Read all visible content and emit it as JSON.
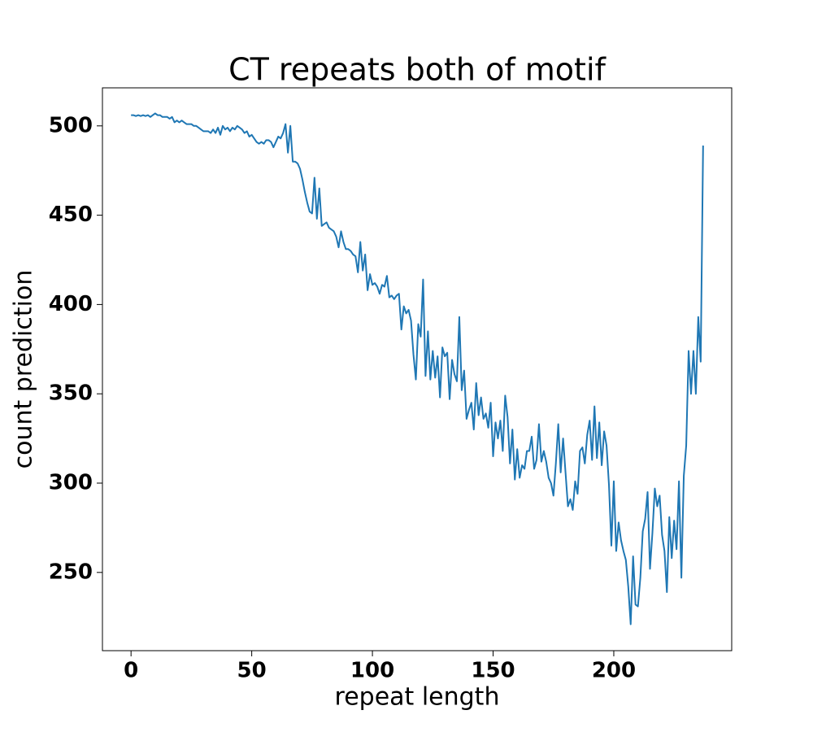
{
  "chart_data": {
    "type": "line",
    "title": "CT repeats both of motif",
    "x_label": "repeat length",
    "y_label": "count prediction",
    "x": [
      0,
      1,
      2,
      3,
      4,
      5,
      6,
      7,
      8,
      9,
      10,
      11,
      12,
      13,
      14,
      15,
      16,
      17,
      18,
      19,
      20,
      21,
      22,
      23,
      24,
      25,
      26,
      27,
      28,
      29,
      30,
      31,
      32,
      33,
      34,
      35,
      36,
      37,
      38,
      39,
      40,
      41,
      42,
      43,
      44,
      45,
      46,
      47,
      48,
      49,
      50,
      51,
      52,
      53,
      54,
      55,
      56,
      57,
      58,
      59,
      60,
      61,
      62,
      63,
      64,
      65,
      66,
      67,
      68,
      69,
      70,
      71,
      72,
      73,
      74,
      75,
      76,
      77,
      78,
      79,
      80,
      81,
      82,
      83,
      84,
      85,
      86,
      87,
      88,
      89,
      90,
      91,
      92,
      93,
      94,
      95,
      96,
      97,
      98,
      99,
      100,
      101,
      102,
      103,
      104,
      105,
      106,
      107,
      108,
      109,
      110,
      111,
      112,
      113,
      114,
      115,
      116,
      117,
      118,
      119,
      120,
      121,
      122,
      123,
      124,
      125,
      126,
      127,
      128,
      129,
      130,
      131,
      132,
      133,
      134,
      135,
      136,
      137,
      138,
      139,
      140,
      141,
      142,
      143,
      144,
      145,
      146,
      147,
      148,
      149,
      150,
      151,
      152,
      153,
      154,
      155,
      156,
      157,
      158,
      159,
      160,
      161,
      162,
      163,
      164,
      165,
      166,
      167,
      168,
      169,
      170,
      171,
      172,
      173,
      174,
      175,
      176,
      177,
      178,
      179,
      180,
      181,
      182,
      183,
      184,
      185,
      186,
      187,
      188,
      189,
      190,
      191,
      192,
      193,
      194,
      195,
      196,
      197,
      198,
      199,
      200,
      201,
      202,
      203,
      204,
      205,
      206,
      207,
      208,
      209,
      210,
      211,
      212,
      213,
      214,
      215,
      216,
      217,
      218,
      219,
      220,
      221,
      222,
      223,
      224,
      225,
      226,
      227,
      228,
      229,
      230,
      231,
      232,
      233,
      234,
      235,
      236,
      237
    ],
    "series": [
      {
        "name": "count prediction",
        "color": "#1f77b4",
        "values": [
          506,
          506,
          505.5,
          506,
          505.5,
          506,
          505.5,
          506,
          505,
          506,
          507,
          506,
          506,
          505,
          505,
          505,
          504,
          505,
          502,
          503,
          502,
          503,
          502,
          501,
          501,
          501,
          500,
          500,
          499,
          498,
          497,
          497,
          497,
          496,
          498,
          496,
          499,
          495,
          500,
          498,
          499,
          497,
          499,
          498,
          500,
          499,
          498,
          496,
          497,
          494,
          495,
          493,
          491,
          490,
          491,
          490,
          492,
          492,
          491,
          488,
          491,
          494,
          493,
          496,
          501,
          485,
          500,
          480,
          480,
          479,
          476,
          470,
          463,
          457,
          452,
          451,
          471,
          448,
          465,
          444,
          445,
          446,
          443,
          442,
          441,
          438,
          432,
          441,
          435,
          431,
          431,
          430,
          428,
          427,
          418,
          435,
          419,
          428,
          408,
          417,
          411,
          412,
          410,
          406,
          411,
          410,
          416,
          404,
          405,
          403,
          405,
          406,
          386,
          399,
          395,
          397,
          391,
          372,
          358,
          389,
          382,
          414,
          360,
          385,
          358,
          374,
          359,
          371,
          348,
          376,
          371,
          373,
          347,
          369,
          361,
          357,
          393,
          352,
          363,
          336,
          341,
          345,
          330,
          356,
          338,
          348,
          336,
          339,
          331,
          345,
          315,
          334,
          325,
          335,
          318,
          349,
          337,
          311,
          330,
          302,
          319,
          303,
          310,
          308,
          318,
          318,
          326,
          308,
          313,
          333,
          312,
          318,
          312,
          303,
          300,
          293,
          311,
          333,
          306,
          325,
          306,
          287,
          291,
          285,
          301,
          294,
          318,
          320,
          311,
          327,
          335,
          313,
          343,
          314,
          334,
          310,
          329,
          321,
          299,
          265,
          301,
          262,
          278,
          268,
          262,
          257,
          242,
          221,
          259,
          232,
          231,
          247,
          273,
          280,
          295,
          252,
          272,
          297,
          287,
          293,
          271,
          262,
          239,
          281,
          258,
          279,
          263,
          301,
          247,
          304,
          321,
          374,
          350,
          374,
          350,
          393,
          368,
          489
        ]
      }
    ],
    "xlim": [
      -11.85,
      248.85
    ],
    "ylim": [
      206.2,
      521.3
    ],
    "xticks": [
      0,
      50,
      100,
      150,
      200
    ],
    "yticks": [
      250,
      300,
      350,
      400,
      450,
      500
    ]
  }
}
